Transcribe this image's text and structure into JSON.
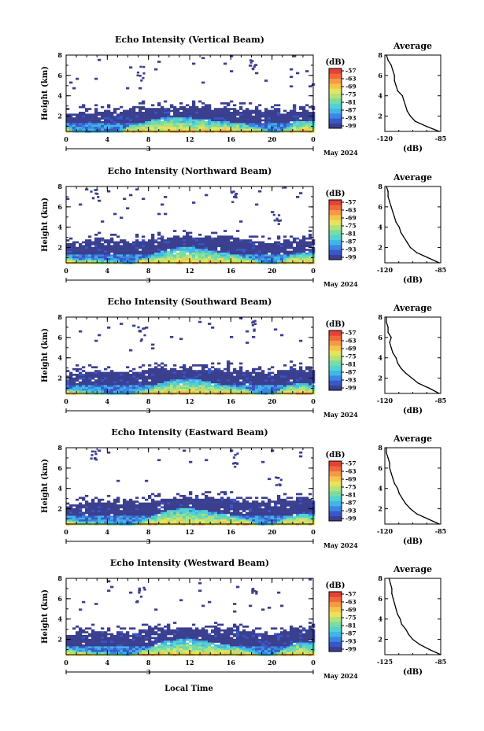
{
  "figure": {
    "xlabel": "Local Time",
    "date_label": "May 2024",
    "ylabel": "Height (km)",
    "colorbar_unit": "(dB)",
    "avg_title": "Average",
    "avg_xlabel": "(dB)"
  },
  "colors": {
    "colormap": [
      "#3b3f8f",
      "#3957c8",
      "#3a86e0",
      "#42b5e8",
      "#53d2d0",
      "#79dca3",
      "#b4e27a",
      "#e6e35c",
      "#f6c34e",
      "#f59a44",
      "#ee6a3e",
      "#e54236"
    ]
  },
  "chart_data": [
    {
      "type": "heatmap",
      "title": "Echo Intensity (Vertical Beam)",
      "beam": "vertical",
      "xlabel": "Local Time",
      "ylabel": "Height (km)",
      "xlim": [
        0,
        24
      ],
      "ylim": [
        0.5,
        8
      ],
      "xticks": [
        "0",
        "4",
        "8",
        "12",
        "16",
        "20",
        "0"
      ],
      "day_marker": "3",
      "yticks": [
        "2",
        "4",
        "6",
        "8"
      ],
      "colorbar": {
        "unit": "(dB)",
        "range": [
          -99,
          -57
        ],
        "ticks": [
          "-57",
          "-63",
          "-69",
          "-75",
          "-81",
          "-87",
          "-93",
          "-99"
        ]
      },
      "layer_top_km": [
        2.2,
        2.4,
        2.3,
        2.4,
        2.5,
        2.4,
        2.6,
        2.7,
        2.9,
        2.8,
        2.8,
        2.9,
        2.9,
        2.8,
        2.8,
        2.9,
        2.8,
        2.8,
        2.7,
        2.6,
        2.6,
        2.4,
        2.6,
        2.7,
        2.6
      ],
      "layer_top_extra_km": [
        0.4,
        0.0,
        0.0,
        0.0,
        0.0,
        0.0,
        0.6,
        0.8,
        1.1,
        1.3,
        1.4,
        1.4,
        1.3,
        1.2,
        1.1,
        1.0,
        0.9,
        0.8,
        0.6,
        0.3,
        0.0,
        0.2,
        1.0,
        1.1,
        0.9
      ],
      "average_profile": {
        "title": "Average",
        "xlabel": "(dB)",
        "xlim": [
          -120,
          -85
        ],
        "xticks": [
          "-120",
          "-85"
        ],
        "yticks": [
          "2",
          "4",
          "6",
          "8"
        ],
        "height_km": [
          0.5,
          1.0,
          1.5,
          2.0,
          2.5,
          3.0,
          3.5,
          4.0,
          4.5,
          5.0,
          5.5,
          6.0,
          6.5,
          7.0,
          7.5,
          8.0
        ],
        "db": [
          -86,
          -94,
          -101,
          -104,
          -106,
          -107,
          -108,
          -109,
          -112,
          -113,
          -114,
          -114,
          -115,
          -116,
          -118,
          -119
        ]
      }
    },
    {
      "type": "heatmap",
      "title": "Echo Intensity (Northward Beam)",
      "beam": "northward",
      "xlabel": "Local Time",
      "ylabel": "Height (km)",
      "xlim": [
        0,
        24
      ],
      "ylim": [
        0.5,
        8
      ],
      "xticks": [
        "0",
        "4",
        "8",
        "12",
        "16",
        "20",
        "0"
      ],
      "day_marker": "3",
      "yticks": [
        "2",
        "4",
        "6",
        "8"
      ],
      "colorbar": {
        "unit": "(dB)",
        "range": [
          -99,
          -57
        ],
        "ticks": [
          "-57",
          "-63",
          "-69",
          "-75",
          "-81",
          "-87",
          "-93",
          "-99"
        ]
      },
      "layer_top_km": [
        2.3,
        2.6,
        2.7,
        2.8,
        2.8,
        2.7,
        2.6,
        2.7,
        2.8,
        3.0,
        3.0,
        3.1,
        3.1,
        3.0,
        3.0,
        3.1,
        3.0,
        2.8,
        2.7,
        2.6,
        2.5,
        2.6,
        2.9,
        3.0,
        2.9
      ],
      "layer_top_extra_km": [
        0.7,
        0.3,
        0.4,
        0.3,
        0.2,
        0.2,
        0.0,
        0.4,
        0.7,
        1.1,
        1.4,
        1.5,
        1.5,
        1.4,
        1.2,
        1.0,
        0.9,
        0.7,
        0.4,
        0.0,
        0.0,
        0.4,
        0.9,
        1.1,
        1.0
      ],
      "average_profile": {
        "title": "Average",
        "xlabel": "(dB)",
        "xlim": [
          -120,
          -85
        ],
        "xticks": [
          "-120",
          "-85"
        ],
        "yticks": [
          "2",
          "4",
          "6",
          "8"
        ],
        "height_km": [
          0.5,
          1.0,
          1.5,
          2.0,
          2.5,
          3.0,
          3.5,
          4.0,
          4.5,
          5.0,
          5.5,
          6.0,
          6.5,
          7.0,
          7.5,
          8.0
        ],
        "db": [
          -86,
          -93,
          -100,
          -104,
          -106,
          -108,
          -110,
          -111,
          -113,
          -114,
          -115,
          -116,
          -117,
          -118,
          -118,
          -119
        ]
      }
    },
    {
      "type": "heatmap",
      "title": "Echo Intensity (Southward Beam)",
      "beam": "southward",
      "xlabel": "Local Time",
      "ylabel": "Height (km)",
      "xlim": [
        0,
        24
      ],
      "ylim": [
        0.5,
        8
      ],
      "xticks": [
        "0",
        "4",
        "8",
        "12",
        "16",
        "20",
        "0"
      ],
      "day_marker": "3",
      "yticks": [
        "2",
        "4",
        "6",
        "8"
      ],
      "colorbar": {
        "unit": "(dB)",
        "range": [
          -99,
          -57
        ],
        "ticks": [
          "-57",
          "-63",
          "-69",
          "-75",
          "-81",
          "-87",
          "-93",
          "-99"
        ]
      },
      "layer_top_km": [
        2.2,
        2.6,
        2.7,
        2.7,
        2.7,
        2.6,
        2.5,
        2.6,
        2.8,
        2.9,
        2.9,
        3.0,
        3.0,
        2.9,
        2.9,
        3.0,
        2.9,
        2.7,
        2.6,
        2.6,
        2.6,
        2.8,
        3.0,
        3.0,
        2.8
      ],
      "layer_top_extra_km": [
        0.5,
        0.3,
        0.2,
        0.2,
        0.1,
        0.1,
        0.0,
        0.3,
        0.6,
        1.0,
        1.3,
        1.4,
        1.4,
        1.3,
        1.1,
        0.9,
        0.8,
        0.6,
        0.3,
        0.0,
        0.1,
        0.6,
        1.0,
        1.0,
        0.8
      ],
      "average_profile": {
        "title": "Average",
        "xlabel": "(dB)",
        "xlim": [
          -120,
          -85
        ],
        "xticks": [
          "-120",
          "-85"
        ],
        "yticks": [
          "2",
          "4",
          "6",
          "8"
        ],
        "height_km": [
          0.5,
          1.0,
          1.5,
          2.0,
          2.5,
          3.0,
          3.5,
          4.0,
          4.5,
          5.0,
          5.5,
          6.0,
          6.5,
          7.0,
          7.5,
          8.0
        ],
        "db": [
          -86,
          -92,
          -99,
          -103,
          -107,
          -110,
          -112,
          -113,
          -115,
          -116,
          -117,
          -116,
          -118,
          -118,
          -119,
          -119
        ]
      }
    },
    {
      "type": "heatmap",
      "title": "Echo Intensity (Eastward Beam)",
      "beam": "eastward",
      "xlabel": "Local Time",
      "ylabel": "Height (km)",
      "xlim": [
        0,
        24
      ],
      "ylim": [
        0.5,
        8
      ],
      "xticks": [
        "0",
        "4",
        "8",
        "12",
        "16",
        "20",
        "0"
      ],
      "day_marker": "3",
      "yticks": [
        "2",
        "4",
        "6",
        "8"
      ],
      "colorbar": {
        "unit": "(dB)",
        "range": [
          -99,
          -57
        ],
        "ticks": [
          "-57",
          "-63",
          "-69",
          "-75",
          "-81",
          "-87",
          "-93",
          "-99"
        ]
      },
      "layer_top_km": [
        2.3,
        2.6,
        2.7,
        2.7,
        2.7,
        2.6,
        2.6,
        2.7,
        2.8,
        3.0,
        3.0,
        3.1,
        3.1,
        3.0,
        3.0,
        3.1,
        3.0,
        2.8,
        2.7,
        2.6,
        2.6,
        2.8,
        3.0,
        3.0,
        2.9
      ],
      "layer_top_extra_km": [
        0.6,
        0.3,
        0.3,
        0.2,
        0.2,
        0.1,
        0.0,
        0.3,
        0.7,
        1.1,
        1.4,
        1.5,
        1.5,
        1.4,
        1.2,
        1.0,
        0.9,
        0.7,
        0.3,
        0.0,
        0.1,
        0.6,
        1.0,
        1.1,
        1.0
      ],
      "average_profile": {
        "title": "Average",
        "xlabel": "(dB)",
        "xlim": [
          -120,
          -85
        ],
        "xticks": [
          "-120",
          "-85"
        ],
        "yticks": [
          "2",
          "4",
          "6",
          "8"
        ],
        "height_km": [
          0.5,
          1.0,
          1.5,
          2.0,
          2.5,
          3.0,
          3.5,
          4.0,
          4.5,
          5.0,
          5.5,
          6.0,
          6.5,
          7.0,
          7.5,
          8.0
        ],
        "db": [
          -86,
          -93,
          -100,
          -104,
          -107,
          -109,
          -111,
          -112,
          -114,
          -115,
          -116,
          -117,
          -117,
          -118,
          -119,
          -119
        ]
      }
    },
    {
      "type": "heatmap",
      "title": "Echo Intensity (Westward Beam)",
      "beam": "westward",
      "xlabel": "Local Time",
      "ylabel": "Height (km)",
      "xlim": [
        0,
        24
      ],
      "ylim": [
        0.5,
        8
      ],
      "xticks": [
        "0",
        "4",
        "8",
        "12",
        "16",
        "20",
        "0"
      ],
      "day_marker": "3",
      "yticks": [
        "2",
        "4",
        "6",
        "8"
      ],
      "colorbar": {
        "unit": "(dB)",
        "range": [
          -99,
          -57
        ],
        "ticks": [
          "-57",
          "-63",
          "-69",
          "-75",
          "-81",
          "-87",
          "-93",
          "-99"
        ]
      },
      "layer_top_km": [
        2.4,
        2.7,
        2.8,
        2.8,
        2.7,
        2.7,
        2.6,
        2.7,
        2.9,
        3.0,
        3.1,
        3.1,
        3.1,
        3.1,
        3.0,
        3.1,
        3.0,
        2.9,
        2.8,
        2.6,
        2.6,
        2.8,
        3.1,
        3.1,
        3.0
      ],
      "layer_top_extra_km": [
        0.8,
        0.4,
        0.4,
        0.3,
        0.2,
        0.2,
        0.0,
        0.4,
        0.8,
        1.2,
        1.4,
        1.5,
        1.5,
        1.4,
        1.2,
        1.0,
        0.9,
        0.7,
        0.4,
        0.0,
        0.1,
        0.6,
        1.1,
        1.2,
        1.1
      ],
      "average_profile": {
        "title": "Average",
        "xlabel": "(dB)",
        "xlim": [
          -125,
          -85
        ],
        "xticks": [
          "-125",
          "-85"
        ],
        "yticks": [
          "2",
          "4",
          "6",
          "8"
        ],
        "height_km": [
          0.5,
          1.0,
          1.5,
          2.0,
          2.5,
          3.0,
          3.5,
          4.0,
          4.5,
          5.0,
          5.5,
          6.0,
          6.5,
          7.0,
          7.5,
          8.0
        ],
        "db": [
          -85,
          -93,
          -100,
          -105,
          -108,
          -110,
          -113,
          -114,
          -116,
          -117,
          -118,
          -119,
          -120,
          -120,
          -121,
          -122
        ]
      }
    }
  ]
}
